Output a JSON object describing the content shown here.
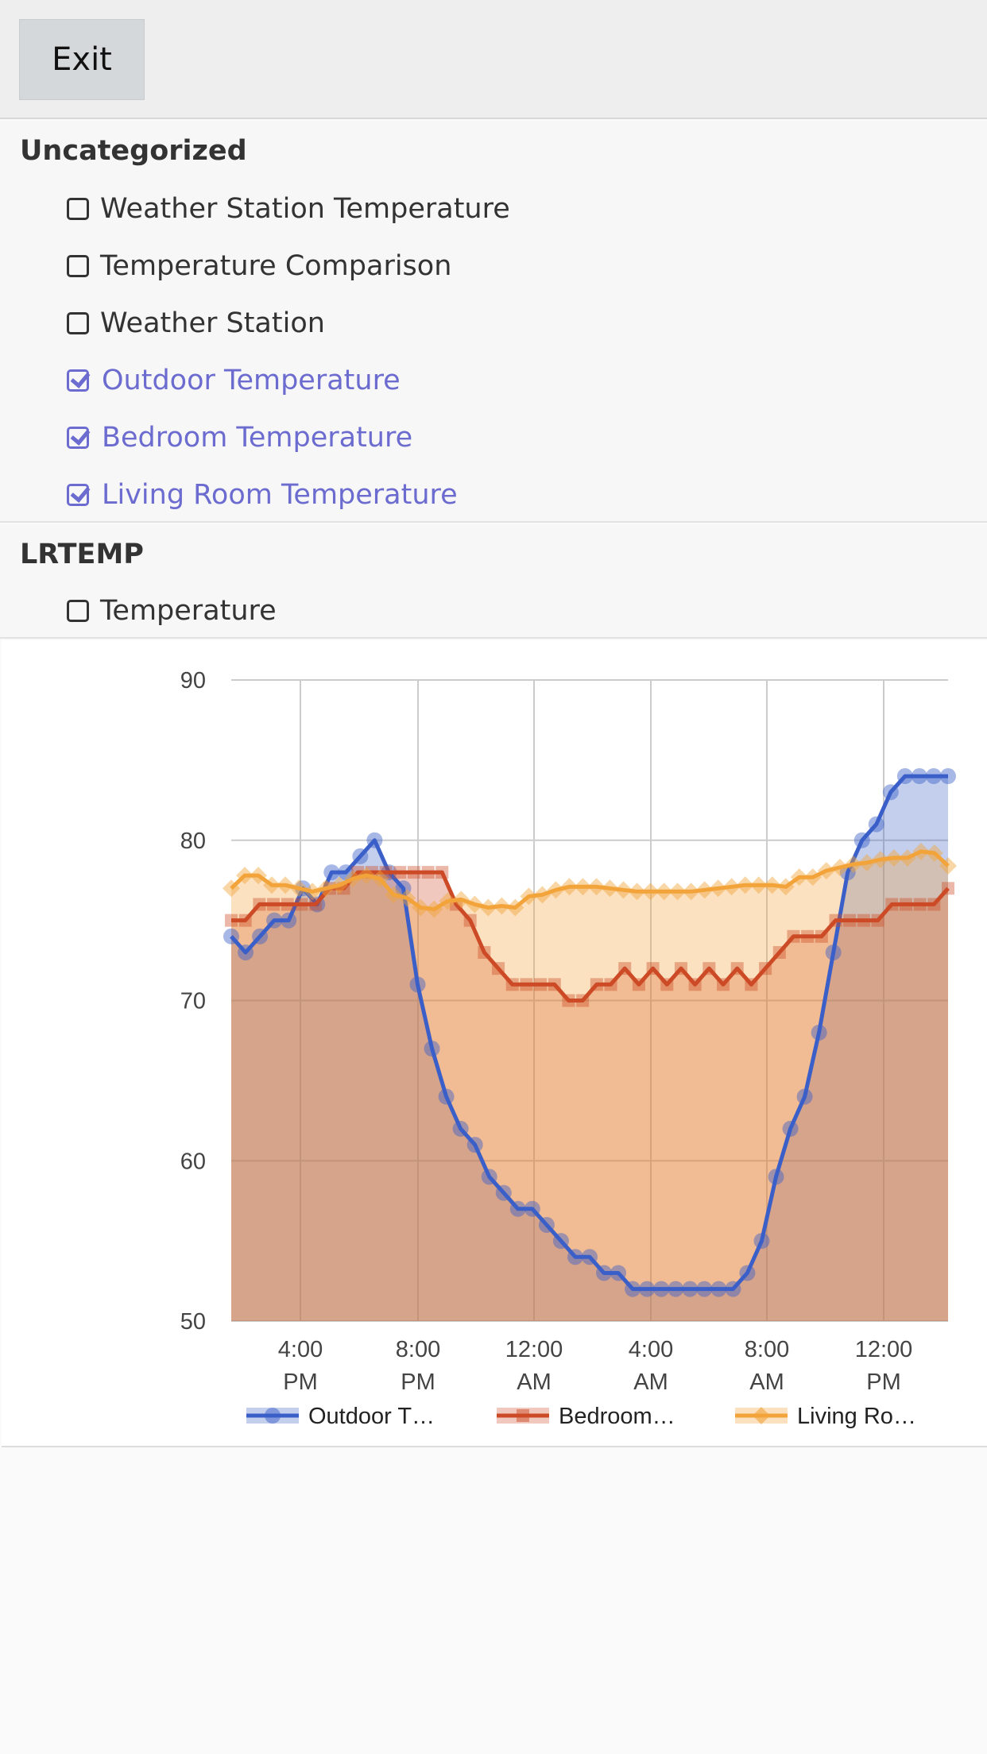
{
  "header": {
    "exit_label": "Exit"
  },
  "groups": [
    {
      "title": "Uncategorized",
      "items": [
        {
          "label": "Weather Station Temperature",
          "checked": false
        },
        {
          "label": "Temperature Comparison",
          "checked": false
        },
        {
          "label": "Weather Station",
          "checked": false
        },
        {
          "label": "Outdoor Temperature",
          "checked": true
        },
        {
          "label": "Bedroom Temperature",
          "checked": true
        },
        {
          "label": "Living Room Temperature",
          "checked": true
        }
      ]
    },
    {
      "title": "LRTEMP",
      "items": [
        {
          "label": "Temperature",
          "checked": false
        }
      ]
    }
  ],
  "colors": {
    "accent": "#6b6bd0",
    "outdoor": "#3b5fc8",
    "bedroom": "#cc4a26",
    "living": "#f2a33a"
  },
  "chart_data": {
    "type": "area",
    "ylim": [
      50,
      90
    ],
    "yticks": [
      "90",
      "80",
      "70",
      "60",
      "50"
    ],
    "xticks": [
      {
        "line1": "4:00",
        "line2": "PM"
      },
      {
        "line1": "8:00",
        "line2": "PM"
      },
      {
        "line1": "12:00",
        "line2": "AM"
      },
      {
        "line1": "4:00",
        "line2": "AM"
      },
      {
        "line1": "8:00",
        "line2": "AM"
      },
      {
        "line1": "12:00",
        "line2": "PM"
      }
    ],
    "series": [
      {
        "name": "Outdoor T…",
        "values": [
          74,
          73,
          74,
          75,
          75,
          77,
          76,
          78,
          78,
          79,
          80,
          78,
          77,
          71,
          67,
          64,
          62,
          61,
          59,
          58,
          57,
          57,
          56,
          55,
          54,
          54,
          53,
          53,
          52,
          52,
          52,
          52,
          52,
          52,
          52,
          52,
          53,
          55,
          59,
          62,
          64,
          68,
          73,
          78,
          80,
          81,
          83,
          84,
          84,
          84,
          84
        ]
      },
      {
        "name": "Bedroom…",
        "values": [
          75,
          75,
          76,
          76,
          76,
          76,
          76,
          77,
          77,
          78,
          78,
          78,
          78,
          78,
          78,
          78,
          76,
          75,
          73,
          72,
          71,
          71,
          71,
          71,
          70,
          70,
          71,
          71,
          72,
          71,
          72,
          71,
          72,
          71,
          72,
          71,
          72,
          71,
          72,
          73,
          74,
          74,
          74,
          75,
          75,
          75,
          75,
          76,
          76,
          76,
          76,
          77
        ]
      },
      {
        "name": "Living Ro…",
        "values": [
          77,
          77.8,
          77.8,
          77.2,
          77.2,
          77,
          76.8,
          77,
          77.2,
          77.6,
          77.8,
          77.6,
          76.6,
          76.4,
          75.8,
          75.7,
          76.2,
          76.3,
          76,
          75.8,
          75.9,
          75.8,
          76.5,
          76.6,
          76.9,
          77.1,
          77.1,
          77.1,
          77,
          76.9,
          76.8,
          76.8,
          76.8,
          76.8,
          76.8,
          76.9,
          77,
          77.1,
          77.2,
          77.2,
          77.2,
          77.1,
          77.7,
          77.7,
          78.1,
          78.3,
          78.5,
          78.6,
          78.8,
          78.9,
          78.9,
          79.3,
          79.2,
          78.4
        ]
      }
    ]
  }
}
